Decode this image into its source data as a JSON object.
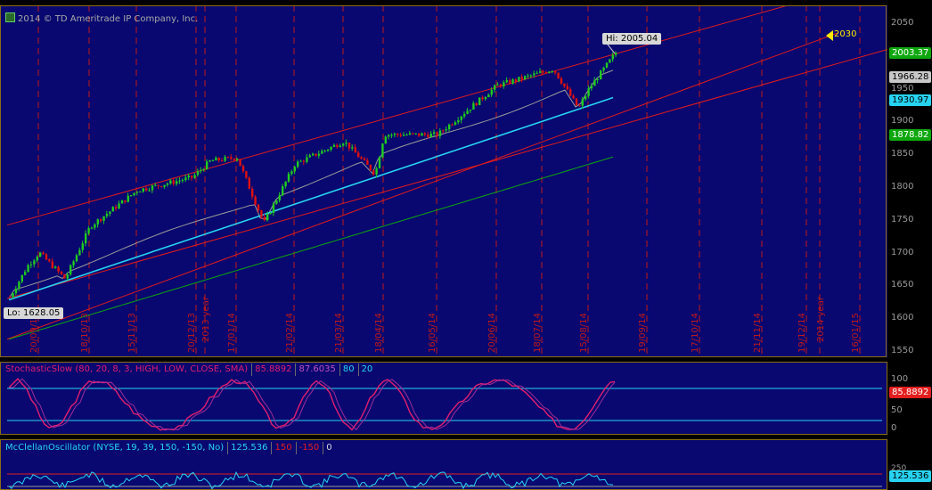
{
  "copyright": "2014 © TD Ameritrade IP Company, Inc.",
  "colors": {
    "panel_bg": "#080870",
    "channel": "#e11b1b",
    "grid_red": "#c01818",
    "up_candle": "#1fcc1f",
    "down_candle": "#e01010",
    "ma_short": "#9a9a9a",
    "ma_mid": "#27d3f2",
    "ma_long": "#0ea80e",
    "stoch_k": "#e21e6f",
    "stoch_d": "#a02c98",
    "mcc_line": "#27d3f2"
  },
  "price_axis": {
    "min": 1550,
    "max": 2050,
    "ticks": [
      "2050",
      "2000",
      "1950",
      "1900",
      "1850",
      "1800",
      "1750",
      "1700",
      "1650",
      "1600",
      "1550"
    ]
  },
  "badges": {
    "last": "2003.37",
    "ma_short": "1966.28",
    "ma_mid": "1930.97",
    "ma_long": "1878.82",
    "target": "2030",
    "stoch": "85.8892",
    "mcc": "125.536"
  },
  "callouts": {
    "hi": "Hi: 2005.04",
    "lo": "Lo: 1628.05"
  },
  "date_labels": [
    "20/09/13",
    "18/10/13",
    "15/11/13",
    "20/12/13",
    "17/01/14",
    "21/02/14",
    "21/03/14",
    "18/04/14",
    "16/05/14",
    "20/06/14",
    "18/07/14",
    "15/08/14",
    "19/09/14",
    "17/10/14",
    "21/11/14",
    "19/12/14",
    "16/01/15"
  ],
  "year_labels": [
    "2013 year",
    "2014 year"
  ],
  "stochastic": {
    "name": "StochasticSlow (80, 20, 8, 3, HIGH, LOW, CLOSE, SMA)",
    "k": "85.8892",
    "d": "87.6035",
    "ob": "80",
    "os": "20",
    "axis": [
      "100",
      "50",
      "0"
    ]
  },
  "mcclellan": {
    "name": "McClellanOscillator (NYSE, 19, 39, 150, -150, No)",
    "value": "125.536",
    "upper": "150",
    "lower": "-150",
    "zero": "0",
    "axis": [
      "250"
    ]
  },
  "chart_data": {
    "type": "candlestick",
    "title": "",
    "ylim": [
      1550,
      2050
    ],
    "regression_channel": {
      "upper_end": 2120,
      "lower_end": 2030
    },
    "hi": 2005.04,
    "lo": 1628.05,
    "last": 2003.37,
    "moving_averages": [
      {
        "color": "#9a9a9a",
        "last": 1966.28
      },
      {
        "color": "#27d3f2",
        "last": 1930.97
      },
      {
        "color": "#0ea80e",
        "last": 1878.82
      }
    ],
    "price_path": [
      {
        "x": "20/09/13",
        "close": 1700
      },
      {
        "x": "mid-Oct 13",
        "close": 1660
      },
      {
        "x": "18/10/13",
        "close": 1740
      },
      {
        "x": "15/11/13",
        "close": 1795
      },
      {
        "x": "20/12/13",
        "close": 1815
      },
      {
        "x": "late Dec 13",
        "close": 1840
      },
      {
        "x": "17/01/14",
        "close": 1845
      },
      {
        "x": "early Feb 14",
        "close": 1745
      },
      {
        "x": "21/02/14",
        "close": 1835
      },
      {
        "x": "21/03/14",
        "close": 1870
      },
      {
        "x": "early Apr 14",
        "close": 1820
      },
      {
        "x": "18/04/14",
        "close": 1880
      },
      {
        "x": "16/05/14",
        "close": 1880
      },
      {
        "x": "20/06/14",
        "close": 1955
      },
      {
        "x": "18/07/14",
        "close": 1980
      },
      {
        "x": "early Aug 14",
        "close": 1920
      },
      {
        "x": "15/08/14",
        "close": 1950
      },
      {
        "x": "late Aug 14",
        "close": 2005
      }
    ]
  }
}
